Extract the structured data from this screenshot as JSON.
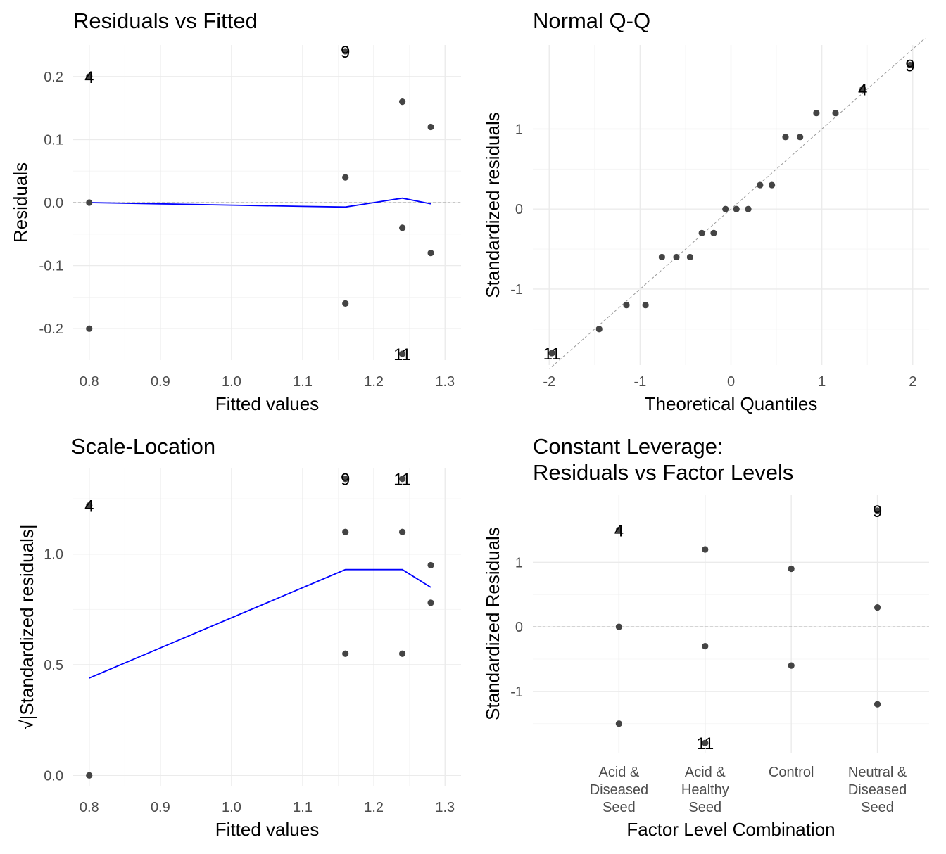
{
  "colors": {
    "points": "#444444",
    "smooth": "#0000ff",
    "reference": "#999999",
    "grid": "#ebebeb"
  },
  "chart_data": [
    {
      "id": "residuals-vs-fitted",
      "type": "scatter",
      "title": "Residuals vs Fitted",
      "xlabel": "Fitted values",
      "ylabel": "Residuals",
      "xlim": [
        0.8,
        1.3
      ],
      "ylim": [
        -0.25,
        0.25
      ],
      "xticks": [
        0.8,
        0.9,
        1.0,
        1.1,
        1.2,
        1.3
      ],
      "xtick_labels": [
        "0.8",
        "0.9",
        "1.0",
        "1.1",
        "1.2",
        "1.3"
      ],
      "yticks": [
        -0.2,
        -0.1,
        0.0,
        0.1,
        0.2
      ],
      "ytick_labels": [
        "-0.2",
        "-0.1",
        "0.0",
        "0.1",
        "0.2"
      ],
      "points": [
        {
          "x": 0.8,
          "y": 0.0
        },
        {
          "x": 0.8,
          "y": -0.2
        },
        {
          "x": 0.8,
          "y": 0.2
        },
        {
          "x": 1.16,
          "y": 0.24
        },
        {
          "x": 1.16,
          "y": 0.04
        },
        {
          "x": 1.16,
          "y": -0.16
        },
        {
          "x": 1.24,
          "y": 0.16
        },
        {
          "x": 1.24,
          "y": -0.04
        },
        {
          "x": 1.24,
          "y": -0.24
        },
        {
          "x": 1.28,
          "y": 0.12
        },
        {
          "x": 1.28,
          "y": -0.08
        }
      ],
      "labels": [
        {
          "text": "4",
          "x": 0.8,
          "y": 0.2
        },
        {
          "text": "9",
          "x": 1.16,
          "y": 0.24
        },
        {
          "text": "11",
          "x": 1.24,
          "y": -0.24
        }
      ],
      "smooth": [
        {
          "x": 0.8,
          "y": 0.0
        },
        {
          "x": 0.9,
          "y": -0.002
        },
        {
          "x": 1.0,
          "y": -0.004
        },
        {
          "x": 1.1,
          "y": -0.006
        },
        {
          "x": 1.16,
          "y": -0.007
        },
        {
          "x": 1.2,
          "y": 0.0
        },
        {
          "x": 1.24,
          "y": 0.007
        },
        {
          "x": 1.28,
          "y": -0.002
        }
      ],
      "hline": 0
    },
    {
      "id": "normal-qq",
      "type": "scatter",
      "title": "Normal Q-Q",
      "xlabel": "Theoretical Quantiles",
      "ylabel": "Standardized residuals",
      "xlim": [
        -2.0,
        2.0
      ],
      "ylim": [
        -1.95,
        2.05
      ],
      "xticks": [
        -2,
        -1,
        0,
        1,
        2
      ],
      "xtick_labels": [
        "-2",
        "-1",
        "0",
        "1",
        "2"
      ],
      "yticks": [
        -1,
        0,
        1
      ],
      "ytick_labels": [
        "-1",
        "0",
        "1"
      ],
      "points": [
        {
          "x": -1.97,
          "y": -1.8
        },
        {
          "x": -1.97,
          "y": -1.8
        },
        {
          "x": -1.45,
          "y": -1.5
        },
        {
          "x": -1.15,
          "y": -1.2
        },
        {
          "x": -0.94,
          "y": -1.2
        },
        {
          "x": -0.76,
          "y": -0.6
        },
        {
          "x": -0.6,
          "y": -0.6
        },
        {
          "x": -0.45,
          "y": -0.6
        },
        {
          "x": -0.32,
          "y": -0.3
        },
        {
          "x": -0.19,
          "y": -0.3
        },
        {
          "x": -0.06,
          "y": 0.0
        },
        {
          "x": 0.06,
          "y": 0.0
        },
        {
          "x": 0.19,
          "y": 0.0
        },
        {
          "x": 0.32,
          "y": 0.3
        },
        {
          "x": 0.45,
          "y": 0.3
        },
        {
          "x": 0.6,
          "y": 0.9
        },
        {
          "x": 0.76,
          "y": 0.9
        },
        {
          "x": 0.94,
          "y": 1.2
        },
        {
          "x": 1.15,
          "y": 1.2
        },
        {
          "x": 1.45,
          "y": 1.5
        },
        {
          "x": 1.97,
          "y": 1.8
        }
      ],
      "labels": [
        {
          "text": "11",
          "x": -1.97,
          "y": -1.8
        },
        {
          "text": "4",
          "x": 1.45,
          "y": 1.5
        },
        {
          "text": "9",
          "x": 1.97,
          "y": 1.8
        }
      ],
      "refline": {
        "intercept": 0.0,
        "slope": 1.0
      }
    },
    {
      "id": "scale-location",
      "type": "scatter",
      "title": "Scale-Location",
      "xlabel": "Fitted values",
      "ylabel": "√|Standardized residuals|",
      "xlim": [
        0.8,
        1.3
      ],
      "ylim": [
        -0.05,
        1.39
      ],
      "xticks": [
        0.8,
        0.9,
        1.0,
        1.1,
        1.2,
        1.3
      ],
      "xtick_labels": [
        "0.8",
        "0.9",
        "1.0",
        "1.1",
        "1.2",
        "1.3"
      ],
      "yticks": [
        0.0,
        0.5,
        1.0
      ],
      "ytick_labels": [
        "0.0",
        "0.5",
        "1.0"
      ],
      "points": [
        {
          "x": 0.8,
          "y": 0.0
        },
        {
          "x": 0.8,
          "y": 1.22
        },
        {
          "x": 1.16,
          "y": 1.34
        },
        {
          "x": 1.16,
          "y": 1.1
        },
        {
          "x": 1.16,
          "y": 0.55
        },
        {
          "x": 1.24,
          "y": 1.34
        },
        {
          "x": 1.24,
          "y": 1.1
        },
        {
          "x": 1.24,
          "y": 0.55
        },
        {
          "x": 1.28,
          "y": 0.95
        },
        {
          "x": 1.28,
          "y": 0.78
        }
      ],
      "labels": [
        {
          "text": "4",
          "x": 0.8,
          "y": 1.22
        },
        {
          "text": "9",
          "x": 1.16,
          "y": 1.34
        },
        {
          "text": "11",
          "x": 1.24,
          "y": 1.34
        }
      ],
      "smooth": [
        {
          "x": 0.8,
          "y": 0.44
        },
        {
          "x": 1.16,
          "y": 0.93
        },
        {
          "x": 1.24,
          "y": 0.93
        },
        {
          "x": 1.28,
          "y": 0.85
        }
      ]
    },
    {
      "id": "constant-leverage",
      "type": "scatter",
      "title": "Constant Leverage:\nResiduals vs Factor Levels",
      "xlabel": "Factor Level Combination",
      "ylabel": "Standardized Residuals",
      "categories": [
        "Acid &\nDiseased\nSeed",
        "Acid &\nHealthy\nSeed",
        "Control",
        "Neutral &\nDiseased\nSeed"
      ],
      "ylim": [
        -1.95,
        2.05
      ],
      "yticks": [
        -1,
        0,
        1
      ],
      "ytick_labels": [
        "-1",
        "0",
        "1"
      ],
      "points": [
        {
          "x": 0,
          "y": 1.5
        },
        {
          "x": 0,
          "y": 0.0
        },
        {
          "x": 0,
          "y": -1.5
        },
        {
          "x": 1,
          "y": 1.2
        },
        {
          "x": 1,
          "y": -0.3
        },
        {
          "x": 1,
          "y": -1.8
        },
        {
          "x": 2,
          "y": 0.9
        },
        {
          "x": 2,
          "y": -0.6
        },
        {
          "x": 3,
          "y": 1.8
        },
        {
          "x": 3,
          "y": 0.3
        },
        {
          "x": 3,
          "y": -1.2
        }
      ],
      "labels": [
        {
          "text": "4",
          "x": 0,
          "y": 1.5
        },
        {
          "text": "11",
          "x": 1,
          "y": -1.8
        },
        {
          "text": "9",
          "x": 3,
          "y": 1.8
        }
      ],
      "hline": 0
    }
  ]
}
